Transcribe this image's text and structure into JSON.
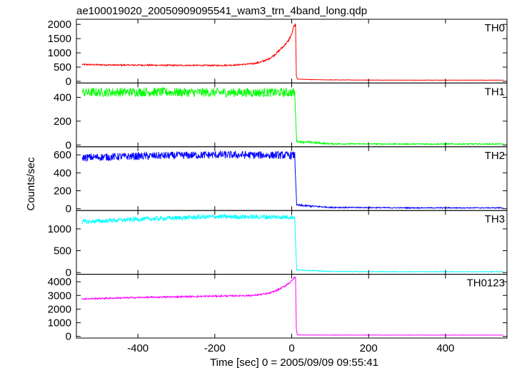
{
  "chart_data": {
    "type": "line",
    "title": "ae100019020_20050909095541_wam3_trn_4band_long.qdp",
    "xlabel": "Time [sec] 0 = 2005/09/09 09:55:41",
    "ylabel": "Counts/sec",
    "xlim": [
      -560,
      560
    ],
    "xticks": [
      -400,
      -200,
      0,
      200,
      400
    ],
    "grid": false,
    "panels": [
      {
        "name": "TH0",
        "color": "#ff0000",
        "ylim": [
          -60,
          2180
        ],
        "yticks": [
          0,
          500,
          1000,
          1500,
          2000
        ],
        "series": {
          "x": [
            -545,
            -500,
            -450,
            -400,
            -350,
            -300,
            -250,
            -200,
            -150,
            -100,
            -80,
            -60,
            -40,
            -20,
            -10,
            0,
            5,
            10,
            12,
            15,
            50,
            100,
            200,
            300,
            400,
            550
          ],
          "y": [
            590,
            580,
            570,
            570,
            565,
            560,
            560,
            555,
            570,
            620,
            680,
            780,
            980,
            1250,
            1400,
            1650,
            1900,
            2000,
            200,
            80,
            60,
            50,
            45,
            40,
            40,
            40
          ],
          "noise": 25
        }
      },
      {
        "name": "TH1",
        "color": "#00ff00",
        "ylim": [
          -15,
          520
        ],
        "yticks": [
          0,
          200,
          400
        ],
        "series": {
          "x": [
            -545,
            -400,
            -200,
            0,
            8,
            10,
            13,
            100,
            300,
            550
          ],
          "y": [
            440,
            445,
            440,
            440,
            440,
            250,
            30,
            10,
            8,
            8
          ],
          "noise": 38
        }
      },
      {
        "name": "TH2",
        "color": "#0000ff",
        "ylim": [
          -20,
          690
        ],
        "yticks": [
          0,
          200,
          400,
          600
        ],
        "series": {
          "x": [
            -545,
            -400,
            -200,
            0,
            8,
            10,
            13,
            100,
            300,
            550
          ],
          "y": [
            570,
            585,
            600,
            595,
            595,
            350,
            40,
            15,
            10,
            10
          ],
          "noise": 42
        }
      },
      {
        "name": "TH3",
        "color": "#00ffff",
        "ylim": [
          -40,
          1420
        ],
        "yticks": [
          0,
          500,
          1000
        ],
        "series": {
          "x": [
            -545,
            -400,
            -200,
            0,
            8,
            10,
            13,
            100,
            300,
            550
          ],
          "y": [
            1160,
            1220,
            1280,
            1270,
            1270,
            700,
            60,
            25,
            20,
            20
          ],
          "noise": 50
        }
      },
      {
        "name": "TH0123",
        "color": "#ff00ff",
        "ylim": [
          -120,
          4550
        ],
        "yticks": [
          0,
          1000,
          2000,
          3000,
          4000
        ],
        "series": {
          "x": [
            -545,
            -400,
            -200,
            -100,
            -60,
            -40,
            -20,
            -10,
            0,
            5,
            10,
            12,
            15,
            50,
            300,
            550
          ],
          "y": [
            2750,
            2850,
            2950,
            3000,
            3150,
            3350,
            3650,
            3850,
            4050,
            4250,
            4350,
            500,
            110,
            100,
            95,
            95
          ],
          "noise": 55
        }
      }
    ]
  }
}
